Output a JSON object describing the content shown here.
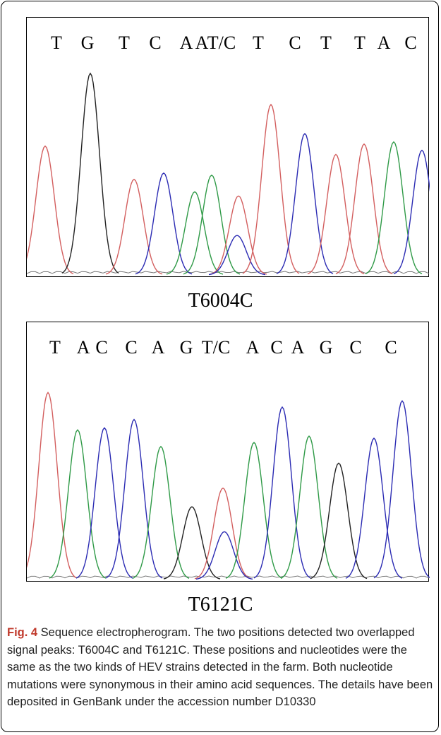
{
  "chart_data": [
    {
      "type": "line",
      "title": "T6004C",
      "bases": [
        "T",
        "G",
        "T",
        "C",
        "A",
        "A",
        "T/C",
        "T",
        "C",
        "T",
        "T",
        "A",
        "C"
      ],
      "traces_colors": {
        "T": "#d35f5f",
        "G": "#222222",
        "C": "#2b2bb3",
        "A": "#2f9a47"
      },
      "peaks": [
        {
          "base": "T",
          "height": 0.62
        },
        {
          "base": "G",
          "height": 0.97
        },
        {
          "base": "T",
          "height": 0.46
        },
        {
          "base": "C",
          "height": 0.49
        },
        {
          "base": "A",
          "height": 0.4
        },
        {
          "base": "A",
          "height": 0.48
        },
        {
          "base": "T",
          "height": 0.38
        },
        {
          "base": "C",
          "height": 0.19
        },
        {
          "base": "T",
          "height": 0.82
        },
        {
          "base": "C",
          "height": 0.68
        },
        {
          "base": "T",
          "height": 0.58
        },
        {
          "base": "T",
          "height": 0.63
        },
        {
          "base": "A",
          "height": 0.64
        },
        {
          "base": "C",
          "height": 0.6
        }
      ]
    },
    {
      "type": "line",
      "title": "T6121C",
      "bases": [
        "T",
        "A",
        "C",
        "C",
        "A",
        "G",
        "T/C",
        "A",
        "C",
        "A",
        "G",
        "C",
        "C"
      ],
      "traces_colors": {
        "T": "#d35f5f",
        "G": "#222222",
        "C": "#2b2bb3",
        "A": "#2f9a47"
      },
      "peaks": [
        {
          "base": "T",
          "height": 0.9
        },
        {
          "base": "A",
          "height": 0.72
        },
        {
          "base": "C",
          "height": 0.73
        },
        {
          "base": "C",
          "height": 0.77
        },
        {
          "base": "A",
          "height": 0.64
        },
        {
          "base": "G",
          "height": 0.35
        },
        {
          "base": "T",
          "height": 0.44
        },
        {
          "base": "C",
          "height": 0.23
        },
        {
          "base": "A",
          "height": 0.66
        },
        {
          "base": "C",
          "height": 0.83
        },
        {
          "base": "A",
          "height": 0.69
        },
        {
          "base": "G",
          "height": 0.56
        },
        {
          "base": "C",
          "height": 0.68
        },
        {
          "base": "C",
          "height": 0.86
        }
      ]
    }
  ],
  "figure": {
    "label1": "T6004C",
    "label2": "T6121C",
    "caption_prefix": "Fig. 4",
    "caption_text": " Sequence electropherogram. The two positions detected two overlapped signal peaks: T6004C and T6121C. These positions and nucleotides were the same as the two kinds of HEV strains detected in the farm. Both nucleotide mutations were synonymous in their amino acid sequences. The details have been deposited in GenBank under the accession number D10330"
  }
}
